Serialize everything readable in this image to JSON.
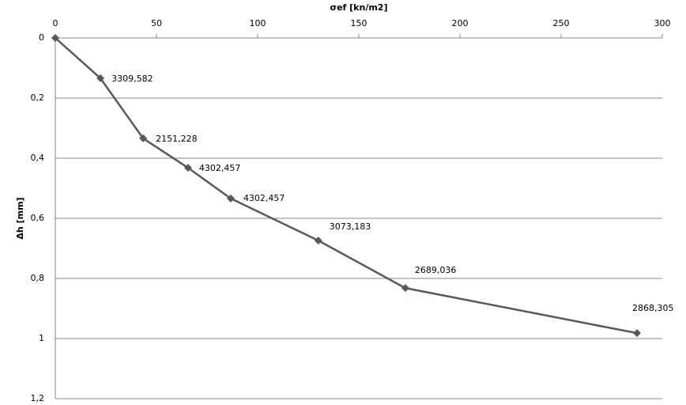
{
  "chart_data": {
    "type": "line",
    "x_label": "σef [kn/m2]",
    "y_label": "Δh [mm]",
    "x": [
      0,
      22.3,
      43.4,
      65.6,
      86.7,
      130,
      173,
      287.5
    ],
    "series": [
      {
        "color": "#595959",
        "values": [
          0,
          0.134,
          0.334,
          0.432,
          0.534,
          0.674,
          0.832,
          0.982
        ]
      }
    ],
    "point_labels": [
      null,
      "3309,582",
      "2151,228",
      "4302,457",
      "4302,457",
      "3073,183",
      "2689,036",
      "2868,305"
    ],
    "xlim": [
      0,
      300
    ],
    "xticks": [
      0,
      50,
      100,
      150,
      200,
      250,
      300
    ],
    "ylim": [
      0,
      1.2
    ],
    "yticks": [
      0,
      {
        "value": 0.2,
        "label": "0,2"
      },
      {
        "value": 0.4,
        "label": "0,4"
      },
      {
        "value": 0.6,
        "label": "0,6"
      },
      {
        "value": 0.8,
        "label": "0,8"
      },
      1,
      {
        "value": 1.2,
        "label": "1,2"
      }
    ],
    "y_inverted": true,
    "x_axis_top": true,
    "grid": true
  }
}
